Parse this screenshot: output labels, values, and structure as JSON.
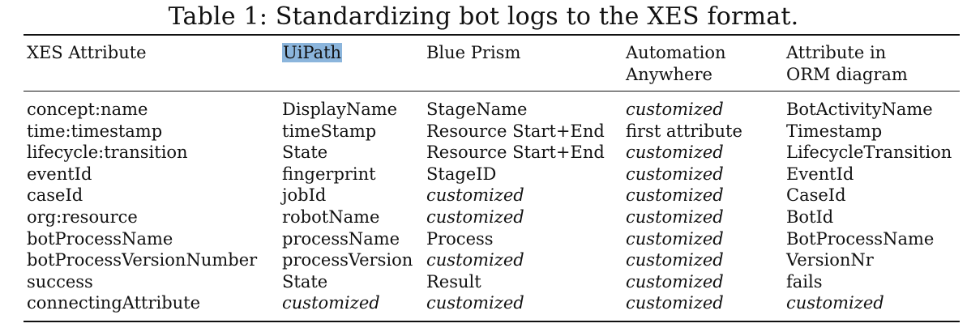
{
  "caption": "Table 1: Standardizing bot logs to the XES format.",
  "headers": {
    "xes": "XES Attribute",
    "uipath": "UiPath",
    "blueprism": "Blue Prism",
    "aa_line1": "Automation",
    "aa_line2": "Anywhere",
    "orm_line1": "Attribute in",
    "orm_line2": "ORM diagram"
  },
  "rows": [
    [
      "concept:name",
      "DisplayName",
      "StageName",
      "customized",
      "BotActivityName"
    ],
    [
      "time:timestamp",
      "timeStamp",
      "Resource Start+End",
      "first attribute",
      "Timestamp"
    ],
    [
      "lifecycle:transition",
      "State",
      "Resource Start+End",
      "customized",
      "LifecycleTransition"
    ],
    [
      "eventId",
      "fingerprint",
      "StageID",
      "customized",
      "EventId"
    ],
    [
      "caseId",
      "jobId",
      "customized",
      "customized",
      "CaseId"
    ],
    [
      "org:resource",
      "robotName",
      "customized",
      "customized",
      "BotId"
    ],
    [
      "botProcessName",
      "processName",
      "Process",
      "customized",
      "BotProcessName"
    ],
    [
      "botProcessVersionNumber",
      "processVersion",
      "customized",
      "customized",
      "VersionNr"
    ],
    [
      "success",
      "State",
      "Result",
      "customized",
      "fails"
    ],
    [
      "connectingAttribute",
      "customized",
      "customized",
      "customized",
      "customized"
    ]
  ],
  "italic_value": "customized",
  "highlight_color": "#8bb5dc"
}
